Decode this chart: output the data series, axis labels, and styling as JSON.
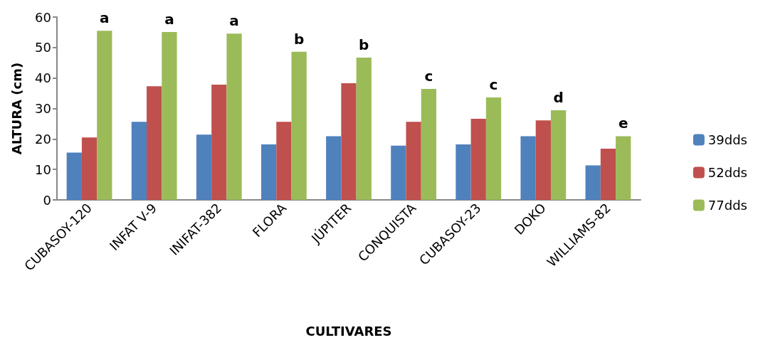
{
  "chart_data": {
    "type": "bar",
    "xlabel": "CULTIVARES",
    "ylabel": "ALTURA (cm)",
    "categories": [
      "CUBASOY-120",
      "INFAT V-9",
      "INIFAT-382",
      "FLORA",
      "JÚPITER",
      "CONQUISTA",
      "CUBASOY-23",
      "DOKO",
      "WILLIAMS-82"
    ],
    "series": [
      {
        "name": "39dds",
        "color": "#4f81bd",
        "values": [
          15.5,
          25.6,
          21.4,
          18.2,
          20.9,
          17.8,
          18.2,
          20.9,
          11.3
        ]
      },
      {
        "name": "52dds",
        "color": "#c0504d",
        "values": [
          20.5,
          37.3,
          37.8,
          25.6,
          38.3,
          25.6,
          26.6,
          26.1,
          16.8
        ]
      },
      {
        "name": "77dds",
        "color": "#9bbb59",
        "values": [
          55.5,
          55.1,
          54.6,
          48.6,
          46.7,
          36.4,
          33.6,
          29.4,
          20.9
        ]
      }
    ],
    "annotations": [
      "a",
      "a",
      "a",
      "b",
      "b",
      "c",
      "c",
      "d",
      "e"
    ],
    "ylim": [
      0,
      60
    ],
    "yticks": [
      0,
      10,
      20,
      30,
      40,
      50,
      60
    ],
    "grid": false,
    "legend": "right"
  }
}
